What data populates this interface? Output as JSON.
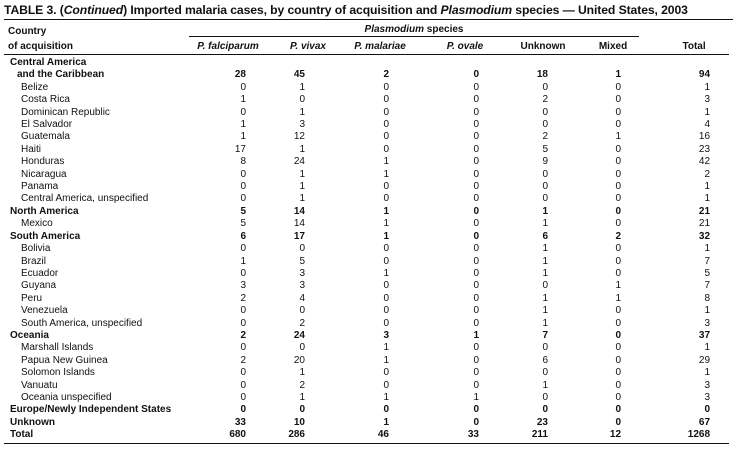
{
  "title": {
    "prefix": "TABLE 3. (",
    "continued": "Continued",
    "middle": ") Imported malaria cases, by country of acquisition and ",
    "species_word": "Plasmodium",
    "suffix": " species — United States, 2003"
  },
  "header": {
    "country_line1": "Country",
    "country_line2": "of acquisition",
    "group_italic": "Plasmodium",
    "group_rest": " species",
    "columns": [
      "P. falciparum",
      "P. vivax",
      "P. malariae",
      "P. ovale",
      "Unknown",
      "Mixed",
      "Total"
    ]
  },
  "rows": [
    {
      "label": "Central America",
      "level": 0,
      "bold": true,
      "values": [
        "",
        "",
        "",
        "",
        "",
        "",
        ""
      ]
    },
    {
      "label": "and the Caribbean",
      "level": 1,
      "bold": true,
      "values": [
        "28",
        "45",
        "2",
        "0",
        "18",
        "1",
        "94"
      ]
    },
    {
      "label": "Belize",
      "level": 2,
      "bold": false,
      "values": [
        "0",
        "1",
        "0",
        "0",
        "0",
        "0",
        "1"
      ]
    },
    {
      "label": "Costa Rica",
      "level": 2,
      "bold": false,
      "values": [
        "1",
        "0",
        "0",
        "0",
        "2",
        "0",
        "3"
      ]
    },
    {
      "label": "Dominican Republic",
      "level": 2,
      "bold": false,
      "values": [
        "0",
        "1",
        "0",
        "0",
        "0",
        "0",
        "1"
      ]
    },
    {
      "label": "El Salvador",
      "level": 2,
      "bold": false,
      "values": [
        "1",
        "3",
        "0",
        "0",
        "0",
        "0",
        "4"
      ]
    },
    {
      "label": "Guatemala",
      "level": 2,
      "bold": false,
      "values": [
        "1",
        "12",
        "0",
        "0",
        "2",
        "1",
        "16"
      ]
    },
    {
      "label": "Haiti",
      "level": 2,
      "bold": false,
      "values": [
        "17",
        "1",
        "0",
        "0",
        "5",
        "0",
        "23"
      ]
    },
    {
      "label": "Honduras",
      "level": 2,
      "bold": false,
      "values": [
        "8",
        "24",
        "1",
        "0",
        "9",
        "0",
        "42"
      ]
    },
    {
      "label": "Nicaragua",
      "level": 2,
      "bold": false,
      "values": [
        "0",
        "1",
        "1",
        "0",
        "0",
        "0",
        "2"
      ]
    },
    {
      "label": "Panama",
      "level": 2,
      "bold": false,
      "values": [
        "0",
        "1",
        "0",
        "0",
        "0",
        "0",
        "1"
      ]
    },
    {
      "label": "Central America, unspecified",
      "level": 2,
      "bold": false,
      "values": [
        "0",
        "1",
        "0",
        "0",
        "0",
        "0",
        "1"
      ]
    },
    {
      "label": "North America",
      "level": 0,
      "bold": true,
      "values": [
        "5",
        "14",
        "1",
        "0",
        "1",
        "0",
        "21"
      ]
    },
    {
      "label": "Mexico",
      "level": 2,
      "bold": false,
      "values": [
        "5",
        "14",
        "1",
        "0",
        "1",
        "0",
        "21"
      ]
    },
    {
      "label": "South America",
      "level": 0,
      "bold": true,
      "values": [
        "6",
        "17",
        "1",
        "0",
        "6",
        "2",
        "32"
      ]
    },
    {
      "label": "Bolivia",
      "level": 2,
      "bold": false,
      "values": [
        "0",
        "0",
        "0",
        "0",
        "1",
        "0",
        "1"
      ]
    },
    {
      "label": "Brazil",
      "level": 2,
      "bold": false,
      "values": [
        "1",
        "5",
        "0",
        "0",
        "1",
        "0",
        "7"
      ]
    },
    {
      "label": "Ecuador",
      "level": 2,
      "bold": false,
      "values": [
        "0",
        "3",
        "1",
        "0",
        "1",
        "0",
        "5"
      ]
    },
    {
      "label": "Guyana",
      "level": 2,
      "bold": false,
      "values": [
        "3",
        "3",
        "0",
        "0",
        "0",
        "1",
        "7"
      ]
    },
    {
      "label": "Peru",
      "level": 2,
      "bold": false,
      "values": [
        "2",
        "4",
        "0",
        "0",
        "1",
        "1",
        "8"
      ]
    },
    {
      "label": "Venezuela",
      "level": 2,
      "bold": false,
      "values": [
        "0",
        "0",
        "0",
        "0",
        "1",
        "0",
        "1"
      ]
    },
    {
      "label": "South America, unspecified",
      "level": 2,
      "bold": false,
      "values": [
        "0",
        "2",
        "0",
        "0",
        "1",
        "0",
        "3"
      ]
    },
    {
      "label": "Oceania",
      "level": 0,
      "bold": true,
      "values": [
        "2",
        "24",
        "3",
        "1",
        "7",
        "0",
        "37"
      ]
    },
    {
      "label": "Marshall Islands",
      "level": 2,
      "bold": false,
      "values": [
        "0",
        "0",
        "1",
        "0",
        "0",
        "0",
        "1"
      ]
    },
    {
      "label": "Papua New Guinea",
      "level": 2,
      "bold": false,
      "values": [
        "2",
        "20",
        "1",
        "0",
        "6",
        "0",
        "29"
      ]
    },
    {
      "label": "Solomon Islands",
      "level": 2,
      "bold": false,
      "values": [
        "0",
        "1",
        "0",
        "0",
        "0",
        "0",
        "1"
      ]
    },
    {
      "label": "Vanuatu",
      "level": 2,
      "bold": false,
      "values": [
        "0",
        "2",
        "0",
        "0",
        "1",
        "0",
        "3"
      ]
    },
    {
      "label": "Oceania unspecified",
      "level": 2,
      "bold": false,
      "values": [
        "0",
        "1",
        "1",
        "1",
        "0",
        "0",
        "3"
      ]
    },
    {
      "label": "Europe/Newly Independent States",
      "level": 0,
      "bold": true,
      "values": [
        "0",
        "0",
        "0",
        "0",
        "0",
        "0",
        "0"
      ]
    },
    {
      "label": "Unknown",
      "level": 0,
      "bold": true,
      "values": [
        "33",
        "10",
        "1",
        "0",
        "23",
        "0",
        "67"
      ]
    },
    {
      "label": "Total",
      "level": 0,
      "bold": true,
      "values": [
        "680",
        "286",
        "46",
        "33",
        "211",
        "12",
        "1268"
      ]
    }
  ]
}
